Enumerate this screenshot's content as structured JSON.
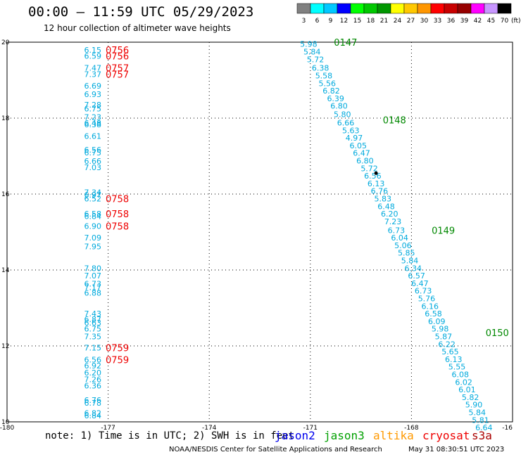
{
  "title": "00:00 – 11:59 UTC 05/29/2023",
  "subtitle": "12 hour collection of altimeter wave heights",
  "note": "note: 1) Time is in UTC; 2) SWH is in feet",
  "credit": "NOAA/NESDIS Center for Satellite Applications and Research",
  "timestamp": "May 31 08:30:51 UTC 2023",
  "satellites": [
    {
      "name": "jason2",
      "color": "#0000ee"
    },
    {
      "name": "jason3",
      "color": "#00a000"
    },
    {
      "name": "altika",
      "color": "#ff9900"
    },
    {
      "name": "cryosat",
      "color": "#ee0000"
    },
    {
      "name": "s3a",
      "color": "#aa0000"
    }
  ],
  "colorbar": {
    "labels": [
      "3",
      "6",
      "9",
      "12",
      "15",
      "18",
      "21",
      "24",
      "27",
      "30",
      "33",
      "36",
      "39",
      "42",
      "45",
      "70"
    ],
    "unit": "(ft)",
    "colors": [
      "#808080",
      "#00ffff",
      "#00c8ff",
      "#0000ff",
      "#00ff00",
      "#00c800",
      "#009600",
      "#ffff00",
      "#ffc800",
      "#ff9600",
      "#ff0000",
      "#c80000",
      "#960000",
      "#ff00ff",
      "#c896ff",
      "#000000"
    ]
  },
  "chart_data": {
    "type": "scatter",
    "title": "00:00 – 11:59 UTC 05/29/2023",
    "subtitle": "12 hour collection of altimeter wave heights",
    "xlim": [
      -180,
      -165
    ],
    "ylim": [
      10,
      20
    ],
    "xticks": [
      "-180",
      "-177",
      "-174",
      "-171",
      "-168",
      "-16"
    ],
    "yticks": [
      "10",
      "12",
      "14",
      "16",
      "18",
      "20"
    ],
    "grid": true,
    "value_color": "#00aadd",
    "track_west": {
      "time_color": "#ee0000",
      "x": -177.2,
      "points": [
        {
          "y": 19.8,
          "v": "6.15"
        },
        {
          "y": 19.64,
          "v": "6.59"
        },
        {
          "y": 19.32,
          "v": "7.47"
        },
        {
          "y": 19.16,
          "v": "7.37"
        },
        {
          "y": 18.85,
          "v": "6.69"
        },
        {
          "y": 18.63,
          "v": "6.93"
        },
        {
          "y": 18.35,
          "v": "7.28"
        },
        {
          "y": 18.25,
          "v": "6.75"
        },
        {
          "y": 18.03,
          "v": "7.23"
        },
        {
          "y": 17.87,
          "v": "6.48"
        },
        {
          "y": 17.83,
          "v": "6.38"
        },
        {
          "y": 17.53,
          "v": "6.61"
        },
        {
          "y": 17.17,
          "v": "6.56"
        },
        {
          "y": 17.09,
          "v": "6.75"
        },
        {
          "y": 16.87,
          "v": "6.66"
        },
        {
          "y": 16.7,
          "v": "7.03"
        },
        {
          "y": 16.05,
          "v": "7.34"
        },
        {
          "y": 15.98,
          "v": "6.97"
        },
        {
          "y": 15.88,
          "v": "6.52"
        },
        {
          "y": 15.48,
          "v": "6.58"
        },
        {
          "y": 15.42,
          "v": "6.84"
        },
        {
          "y": 15.16,
          "v": "6.90"
        },
        {
          "y": 14.85,
          "v": "7.09"
        },
        {
          "y": 14.62,
          "v": "7.95"
        },
        {
          "y": 14.05,
          "v": "7.80"
        },
        {
          "y": 13.85,
          "v": "7.07"
        },
        {
          "y": 13.64,
          "v": "6.73"
        },
        {
          "y": 13.55,
          "v": "7.17"
        },
        {
          "y": 13.4,
          "v": "6.88"
        },
        {
          "y": 12.85,
          "v": "7.43"
        },
        {
          "y": 12.7,
          "v": "6.87"
        },
        {
          "y": 12.61,
          "v": "6.63"
        },
        {
          "y": 12.45,
          "v": "6.75"
        },
        {
          "y": 12.25,
          "v": "7.35"
        },
        {
          "y": 11.95,
          "v": "7.15"
        },
        {
          "y": 11.64,
          "v": "6.56"
        },
        {
          "y": 11.48,
          "v": "6.92"
        },
        {
          "y": 11.3,
          "v": "6.20"
        },
        {
          "y": 11.12,
          "v": "7.26"
        },
        {
          "y": 10.95,
          "v": "6.36"
        },
        {
          "y": 10.57,
          "v": "6.76"
        },
        {
          "y": 10.5,
          "v": "6.78"
        },
        {
          "y": 10.23,
          "v": "6.82"
        },
        {
          "y": 10.17,
          "v": "6.84"
        }
      ],
      "times": [
        {
          "y": 19.8,
          "label": "0756"
        },
        {
          "y": 19.64,
          "label": "0756"
        },
        {
          "y": 19.32,
          "label": "0757"
        },
        {
          "y": 19.16,
          "label": "0757"
        },
        {
          "y": 15.88,
          "label": "0758"
        },
        {
          "y": 15.48,
          "label": "0758"
        },
        {
          "y": 15.16,
          "label": "0758"
        },
        {
          "y": 11.95,
          "label": "0759"
        },
        {
          "y": 11.64,
          "label": "0759"
        }
      ]
    },
    "track_east": {
      "time_color": "#008800",
      "points": [
        {
          "x": -171.05,
          "y": 19.95,
          "v": "5.98"
        },
        {
          "x": -170.95,
          "y": 19.75,
          "v": "5.84"
        },
        {
          "x": -170.85,
          "y": 19.55,
          "v": "5.72"
        },
        {
          "x": -170.7,
          "y": 19.32,
          "v": "6.38"
        },
        {
          "x": -170.6,
          "y": 19.12,
          "v": "5.58"
        },
        {
          "x": -170.5,
          "y": 18.92,
          "v": "5.56"
        },
        {
          "x": -170.38,
          "y": 18.72,
          "v": "6.82"
        },
        {
          "x": -170.25,
          "y": 18.52,
          "v": "6.39"
        },
        {
          "x": -170.15,
          "y": 18.32,
          "v": "6.80"
        },
        {
          "x": -170.05,
          "y": 18.1,
          "v": "5.80"
        },
        {
          "x": -169.95,
          "y": 17.88,
          "v": "6.66"
        },
        {
          "x": -169.8,
          "y": 17.68,
          "v": "5.63"
        },
        {
          "x": -169.7,
          "y": 17.48,
          "v": "4.97"
        },
        {
          "x": -169.58,
          "y": 17.28,
          "v": "6.05"
        },
        {
          "x": -169.48,
          "y": 17.08,
          "v": "6.47"
        },
        {
          "x": -169.38,
          "y": 16.88,
          "v": "6.80"
        },
        {
          "x": -169.25,
          "y": 16.68,
          "v": "5.72"
        },
        {
          "x": -169.15,
          "y": 16.48,
          "v": "6.56"
        },
        {
          "x": -169.05,
          "y": 16.28,
          "v": "6.13"
        },
        {
          "x": -168.95,
          "y": 16.08,
          "v": "6.76"
        },
        {
          "x": -168.85,
          "y": 15.88,
          "v": "5.83"
        },
        {
          "x": -168.75,
          "y": 15.68,
          "v": "6.48"
        },
        {
          "x": -168.65,
          "y": 15.48,
          "v": "6.20"
        },
        {
          "x": -168.55,
          "y": 15.28,
          "v": "7.23"
        },
        {
          "x": -168.45,
          "y": 15.05,
          "v": "6.73"
        },
        {
          "x": -168.35,
          "y": 14.85,
          "v": "6.04"
        },
        {
          "x": -168.25,
          "y": 14.65,
          "v": "5.06"
        },
        {
          "x": -168.15,
          "y": 14.45,
          "v": "5.85"
        },
        {
          "x": -168.05,
          "y": 14.25,
          "v": "5.84"
        },
        {
          "x": -167.95,
          "y": 14.05,
          "v": "6.34"
        },
        {
          "x": -167.85,
          "y": 13.85,
          "v": "6.57"
        },
        {
          "x": -167.75,
          "y": 13.65,
          "v": "6.47"
        },
        {
          "x": -167.65,
          "y": 13.45,
          "v": "6.73"
        },
        {
          "x": -167.55,
          "y": 13.25,
          "v": "5.76"
        },
        {
          "x": -167.45,
          "y": 13.05,
          "v": "6.16"
        },
        {
          "x": -167.35,
          "y": 12.85,
          "v": "6.58"
        },
        {
          "x": -167.25,
          "y": 12.65,
          "v": "6.09"
        },
        {
          "x": -167.15,
          "y": 12.45,
          "v": "5.98"
        },
        {
          "x": -167.05,
          "y": 12.25,
          "v": "5.87"
        },
        {
          "x": -166.95,
          "y": 12.05,
          "v": "6.22"
        },
        {
          "x": -166.85,
          "y": 11.85,
          "v": "5.65"
        },
        {
          "x": -166.75,
          "y": 11.65,
          "v": "6.13"
        },
        {
          "x": -166.65,
          "y": 11.45,
          "v": "5.55"
        },
        {
          "x": -166.55,
          "y": 11.25,
          "v": "6.08"
        },
        {
          "x": -166.45,
          "y": 11.05,
          "v": "6.02"
        },
        {
          "x": -166.35,
          "y": 10.85,
          "v": "6.01"
        },
        {
          "x": -166.25,
          "y": 10.65,
          "v": "5.82"
        },
        {
          "x": -166.15,
          "y": 10.45,
          "v": "5.90"
        },
        {
          "x": -166.05,
          "y": 10.25,
          "v": "5.84"
        },
        {
          "x": -165.95,
          "y": 10.05,
          "v": "5.81"
        },
        {
          "x": -165.85,
          "y": 9.85,
          "v": "6.64"
        }
      ],
      "times": [
        {
          "x": -170.3,
          "y": 20.0,
          "label": "0147"
        },
        {
          "x": -168.85,
          "y": 17.95,
          "label": "0148"
        },
        {
          "x": -167.4,
          "y": 15.05,
          "label": "0149"
        },
        {
          "x": -165.8,
          "y": 12.35,
          "label": "0150"
        }
      ]
    }
  }
}
